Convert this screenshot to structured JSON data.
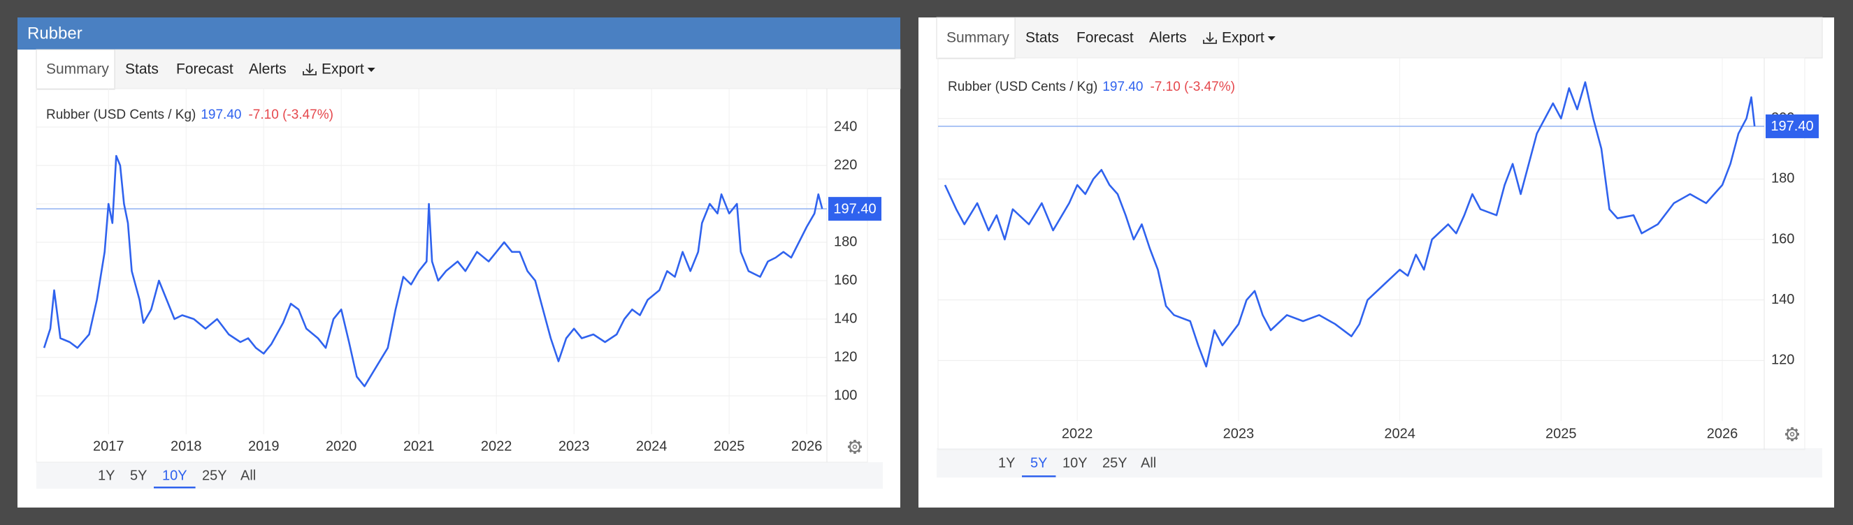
{
  "panels": [
    {
      "header": "Rubber",
      "tabs": [
        "Summary",
        "Stats",
        "Forecast",
        "Alerts",
        "Export"
      ],
      "ranges": [
        "1Y",
        "5Y",
        "10Y",
        "25Y",
        "All"
      ],
      "active_range": "10Y"
    },
    {
      "tabs": [
        "Summary",
        "Stats",
        "Forecast",
        "Alerts",
        "Export"
      ],
      "ranges": [
        "1Y",
        "5Y",
        "10Y",
        "25Y",
        "All"
      ],
      "active_range": "5Y"
    }
  ],
  "chart_data": [
    {
      "type": "line",
      "current": {
        "value": 197.4,
        "label": "197.40"
      },
      "change": "-7.10 (-3.47%)",
      "x": [
        2016.17,
        2016.25,
        2016.3,
        2016.38,
        2016.5,
        2016.6,
        2016.75,
        2016.85,
        2016.95,
        2017.0,
        2017.05,
        2017.1,
        2017.15,
        2017.2,
        2017.25,
        2017.3,
        2017.4,
        2017.45,
        2017.55,
        2017.65,
        2017.75,
        2017.85,
        2017.95,
        2018.1,
        2018.25,
        2018.4,
        2018.55,
        2018.7,
        2018.8,
        2018.9,
        2019.0,
        2019.1,
        2019.25,
        2019.35,
        2019.45,
        2019.55,
        2019.7,
        2019.8,
        2019.9,
        2020.0,
        2020.1,
        2020.2,
        2020.3,
        2020.45,
        2020.6,
        2020.7,
        2020.8,
        2020.9,
        2021.0,
        2021.1,
        2021.13,
        2021.17,
        2021.25,
        2021.35,
        2021.5,
        2021.6,
        2021.75,
        2021.9,
        2022.0,
        2022.1,
        2022.2,
        2022.3,
        2022.4,
        2022.5,
        2022.6,
        2022.7,
        2022.8,
        2022.9,
        2023.0,
        2023.1,
        2023.25,
        2023.4,
        2023.55,
        2023.65,
        2023.75,
        2023.85,
        2023.95,
        2024.1,
        2024.2,
        2024.3,
        2024.4,
        2024.5,
        2024.6,
        2024.65,
        2024.75,
        2024.85,
        2024.9,
        2025.0,
        2025.1,
        2025.15,
        2025.25,
        2025.4,
        2025.5,
        2025.6,
        2025.7,
        2025.8,
        2025.9,
        2026.0,
        2026.1,
        2026.15,
        2026.2
      ],
      "series": [
        {
          "name": "Rubber (USD Cents / Kg)",
          "color": "#2f62ee",
          "values": [
            125,
            135,
            155,
            130,
            128,
            125,
            132,
            150,
            175,
            200,
            190,
            225,
            220,
            200,
            190,
            165,
            150,
            138,
            145,
            160,
            150,
            140,
            142,
            140,
            135,
            140,
            132,
            128,
            130,
            125,
            122,
            127,
            138,
            148,
            145,
            135,
            130,
            125,
            140,
            145,
            128,
            110,
            105,
            115,
            125,
            145,
            162,
            158,
            165,
            170,
            200,
            170,
            160,
            165,
            170,
            165,
            175,
            170,
            175,
            180,
            175,
            175,
            165,
            160,
            145,
            130,
            118,
            130,
            135,
            130,
            132,
            128,
            132,
            140,
            145,
            142,
            150,
            155,
            165,
            162,
            175,
            165,
            175,
            190,
            200,
            195,
            205,
            195,
            200,
            175,
            165,
            162,
            170,
            172,
            175,
            172,
            180,
            188,
            195,
            205,
            197.4
          ]
        }
      ],
      "xlim": [
        2016.16,
        2026.26
      ],
      "xticks": [
        2017,
        2018,
        2019,
        2020,
        2021,
        2022,
        2023,
        2024,
        2025,
        2026
      ],
      "ylim": [
        80,
        260
      ],
      "yticks": [
        100,
        120,
        140,
        160,
        180,
        200,
        220,
        240
      ],
      "grid": true
    },
    {
      "type": "line",
      "current": {
        "value": 197.4,
        "label": "197.40"
      },
      "change": "-7.10 (-3.47%)",
      "x": [
        2021.18,
        2021.25,
        2021.3,
        2021.38,
        2021.45,
        2021.5,
        2021.55,
        2021.6,
        2021.7,
        2021.78,
        2021.85,
        2021.95,
        2022.0,
        2022.05,
        2022.1,
        2022.15,
        2022.2,
        2022.25,
        2022.3,
        2022.35,
        2022.4,
        2022.45,
        2022.5,
        2022.55,
        2022.6,
        2022.7,
        2022.75,
        2022.8,
        2022.85,
        2022.9,
        2023.0,
        2023.05,
        2023.1,
        2023.15,
        2023.2,
        2023.3,
        2023.4,
        2023.5,
        2023.6,
        2023.7,
        2023.75,
        2023.8,
        2023.9,
        2024.0,
        2024.05,
        2024.1,
        2024.15,
        2024.2,
        2024.3,
        2024.35,
        2024.4,
        2024.45,
        2024.5,
        2024.6,
        2024.65,
        2024.7,
        2024.75,
        2024.85,
        2024.95,
        2025.0,
        2025.05,
        2025.1,
        2025.15,
        2025.2,
        2025.25,
        2025.3,
        2025.35,
        2025.45,
        2025.5,
        2025.6,
        2025.7,
        2025.8,
        2025.9,
        2026.0,
        2026.05,
        2026.1,
        2026.15,
        2026.18,
        2026.2
      ],
      "series": [
        {
          "name": "Rubber (USD Cents / Kg)",
          "color": "#2f62ee",
          "values": [
            178,
            170,
            165,
            172,
            163,
            168,
            160,
            170,
            165,
            172,
            163,
            172,
            178,
            175,
            180,
            183,
            178,
            175,
            168,
            160,
            165,
            157,
            150,
            138,
            135,
            133,
            125,
            118,
            130,
            125,
            132,
            140,
            143,
            135,
            130,
            135,
            133,
            135,
            132,
            128,
            132,
            140,
            145,
            150,
            148,
            155,
            150,
            160,
            165,
            162,
            168,
            175,
            170,
            168,
            178,
            185,
            175,
            195,
            205,
            200,
            210,
            203,
            212,
            200,
            190,
            170,
            167,
            168,
            162,
            165,
            172,
            175,
            172,
            178,
            185,
            195,
            200,
            207,
            197.4
          ]
        }
      ],
      "xlim": [
        2021.18,
        2026.26
      ],
      "xticks": [
        2022,
        2023,
        2024,
        2025,
        2026
      ],
      "ylim": [
        100,
        220
      ],
      "yticks": [
        120,
        140,
        160,
        180,
        200
      ],
      "grid": true
    }
  ]
}
